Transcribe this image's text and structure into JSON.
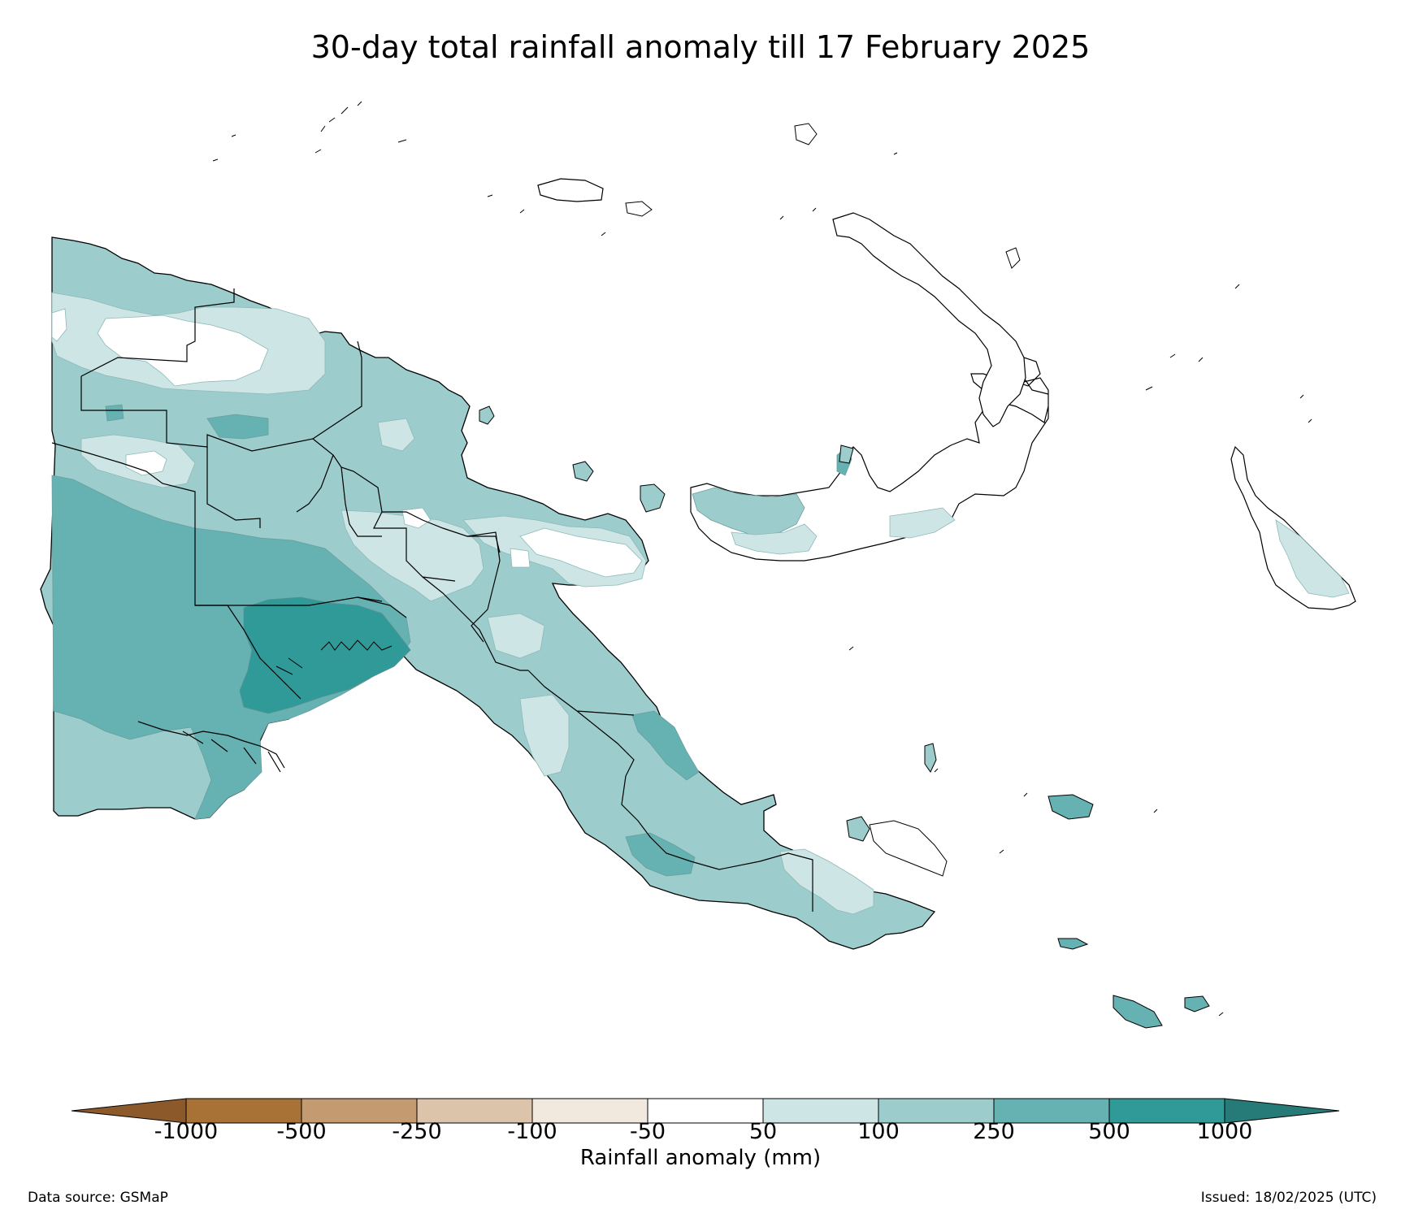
{
  "title": "30-day total rainfall anomaly till 17 February 2025",
  "colorbar": {
    "label": "Rainfall anomaly (mm)",
    "ticks": [
      "-1000",
      "-500",
      "-250",
      "-100",
      "-50",
      "50",
      "100",
      "250",
      "500",
      "1000"
    ],
    "under_color": "#8c5a2a",
    "over_color": "#267a78",
    "bins": [
      {
        "from": "-1000",
        "to": "-500",
        "color": "#a87236"
      },
      {
        "from": "-500",
        "to": "-250",
        "color": "#c49a70"
      },
      {
        "from": "-250",
        "to": "-100",
        "color": "#dcc4aa"
      },
      {
        "from": "-100",
        "to": "-50",
        "color": "#f1e8de"
      },
      {
        "from": "-50",
        "to": "50",
        "color": "#ffffff"
      },
      {
        "from": "50",
        "to": "100",
        "color": "#cde6e5"
      },
      {
        "from": "100",
        "to": "250",
        "color": "#9ccccc"
      },
      {
        "from": "250",
        "to": "500",
        "color": "#66b1b2"
      },
      {
        "from": "500",
        "to": "1000",
        "color": "#2f9a98"
      }
    ]
  },
  "footer": {
    "source": "Data source: GSMaP",
    "issued": "Issued: 18/02/2025 (UTC)"
  }
}
